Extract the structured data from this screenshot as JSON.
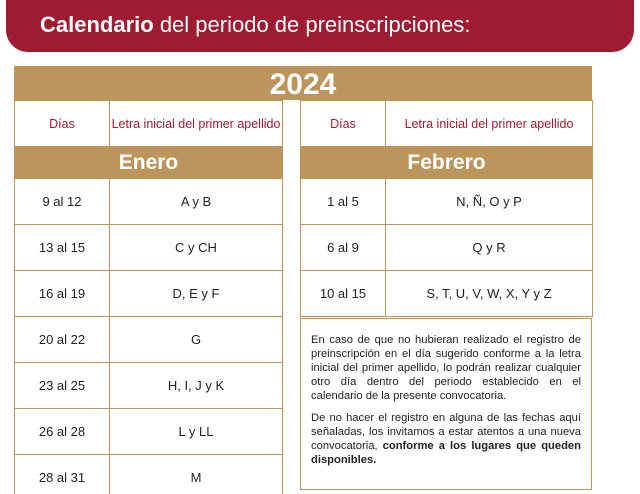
{
  "banner": {
    "title_bold": "Calendario",
    "title_rest": " del periodo de preinscripciones:"
  },
  "year": "2024",
  "headers": {
    "days": "Días",
    "letter": "Letra inicial del primer apellido"
  },
  "january": {
    "month": "Enero",
    "rows": [
      {
        "days": "9 al 12",
        "letters": "A y B"
      },
      {
        "days": "13 al 15",
        "letters": "C y CH"
      },
      {
        "days": "16 al 19",
        "letters": "D, E y F"
      },
      {
        "days": "20 al 22",
        "letters": "G"
      },
      {
        "days": "23 al 25",
        "letters": "H, I, J y K"
      },
      {
        "days": "26 al 28",
        "letters": "L y LL"
      },
      {
        "days": "28 al 31",
        "letters": "M"
      }
    ]
  },
  "february": {
    "month": "Febrero",
    "rows": [
      {
        "days": "1 al 5",
        "letters": "N, Ñ, O y P"
      },
      {
        "days": "6 al 9",
        "letters": "Q y R"
      },
      {
        "days": "10 al 15",
        "letters": "S, T, U, V, W, X, Y y Z"
      }
    ]
  },
  "note": {
    "paragraph1": "En caso de que no hubieran realizado el registro de preinscripción en el día sugerido conforme a la letra inicial del primer apellido, lo podrán realizar cualquier otro día dentro del periodo establecido en el calendario de la presente convocatoria.",
    "paragraph2_plain": "De no hacer el registro en alguna de las fechas aquí señaladas, los invitamos a estar atentos a una nueva convocatoria, ",
    "paragraph2_bold": "conforme a los lugares que queden disponibles."
  },
  "colors": {
    "brand_red": "#9e1b32",
    "gold": "#bc955c"
  }
}
